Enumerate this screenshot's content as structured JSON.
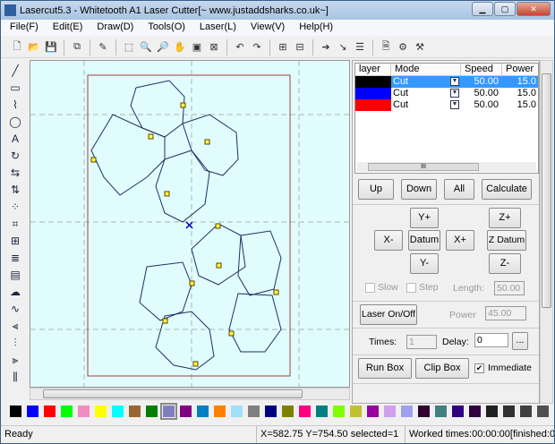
{
  "window": {
    "title": "Lasercut5.3 - Whitetooth A1 Laser Cutter[~ www.justaddsharks.co.uk~]",
    "min": "▁",
    "max": "▢",
    "close": "✕"
  },
  "menu": [
    "File(F)",
    "Edit(E)",
    "Draw(D)",
    "Tools(O)",
    "Laser(L)",
    "View(V)",
    "Help(H)"
  ],
  "toolbar": [
    "new-icon",
    "open-icon",
    "save-icon",
    "copy-icon",
    "brush-icon",
    "select-icon",
    "zoom-in-icon",
    "zoom-out-icon",
    "pan-icon",
    "fit-icon",
    "zoom-box-icon",
    "undo-icon",
    "redo-icon",
    "group-icon",
    "ungroup-icon",
    "path-icon",
    "node-icon",
    "list-icon",
    "preview-icon",
    "settings-icon",
    "machine-icon"
  ],
  "left_tools": [
    "line-icon",
    "rectangle-icon",
    "polyline-icon",
    "ellipse-icon",
    "text-icon",
    "rotate-icon",
    "mirror-horizontal-icon",
    "mirror-vertical-icon",
    "array-icon",
    "crop-icon",
    "grid-icon",
    "align-icon",
    "hatch-icon",
    "measure-icon",
    "curve-icon",
    "align-left-icon",
    "align-center-icon",
    "align-right-icon",
    "distribute-icon"
  ],
  "layers": {
    "headers": [
      "layer",
      "Mode",
      "Speed",
      "Power"
    ],
    "rows": [
      {
        "color": "#000000",
        "mode": "Cut",
        "speed": "50.00",
        "power": "15.0",
        "selected": true
      },
      {
        "color": "#0000ff",
        "mode": "Cut",
        "speed": "50.00",
        "power": "15.0",
        "selected": false
      },
      {
        "color": "#ff0000",
        "mode": "Cut",
        "speed": "50.00",
        "power": "15.0",
        "selected": false
      }
    ],
    "scroll_grip": "III"
  },
  "buttons": {
    "up": "Up",
    "down": "Down",
    "all": "All",
    "calculate": "Calculate",
    "y_plus": "Y+",
    "z_plus": "Z+",
    "x_minus": "X-",
    "datum": "Datum",
    "x_plus": "X+",
    "z_datum": "Z Datum",
    "y_minus": "Y-",
    "z_minus": "Z-",
    "laser_onoff": "Laser On/Off",
    "browse": "...",
    "run_box": "Run Box",
    "clip_box": "Clip Box"
  },
  "controls": {
    "slow": "Slow",
    "step": "Step",
    "length_label": "Length:",
    "length": "50.00",
    "power_label": "Power",
    "power": "45.00",
    "times_label": "Times:",
    "times": "1",
    "delay_label": "Delay:",
    "delay": "0",
    "immediate": "Immediate",
    "immediate_checked": true
  },
  "palette": [
    "#000000",
    "#0000ff",
    "#ff0000",
    "#00ff00",
    "#f08cc0",
    "#ffff00",
    "#00ffff",
    "#996633",
    "#008000",
    "#8080c0",
    "#800080",
    "#0080c0",
    "#ff8000",
    "#a0e0f8",
    "#808080",
    "#000080",
    "#808000",
    "#ff0080",
    "#008080",
    "#80ff00",
    "#c0c030",
    "#9900a0",
    "#d0a0f0",
    "#a0a0f0",
    "#300030",
    "#408080",
    "#300080",
    "#300040",
    "#202020",
    "#303030",
    "#404040",
    "#505050"
  ],
  "status": {
    "ready": "Ready",
    "coords": "X=582.75 Y=754.50 selected=1",
    "worked": "Worked times:00:00:00[finished:0"
  }
}
